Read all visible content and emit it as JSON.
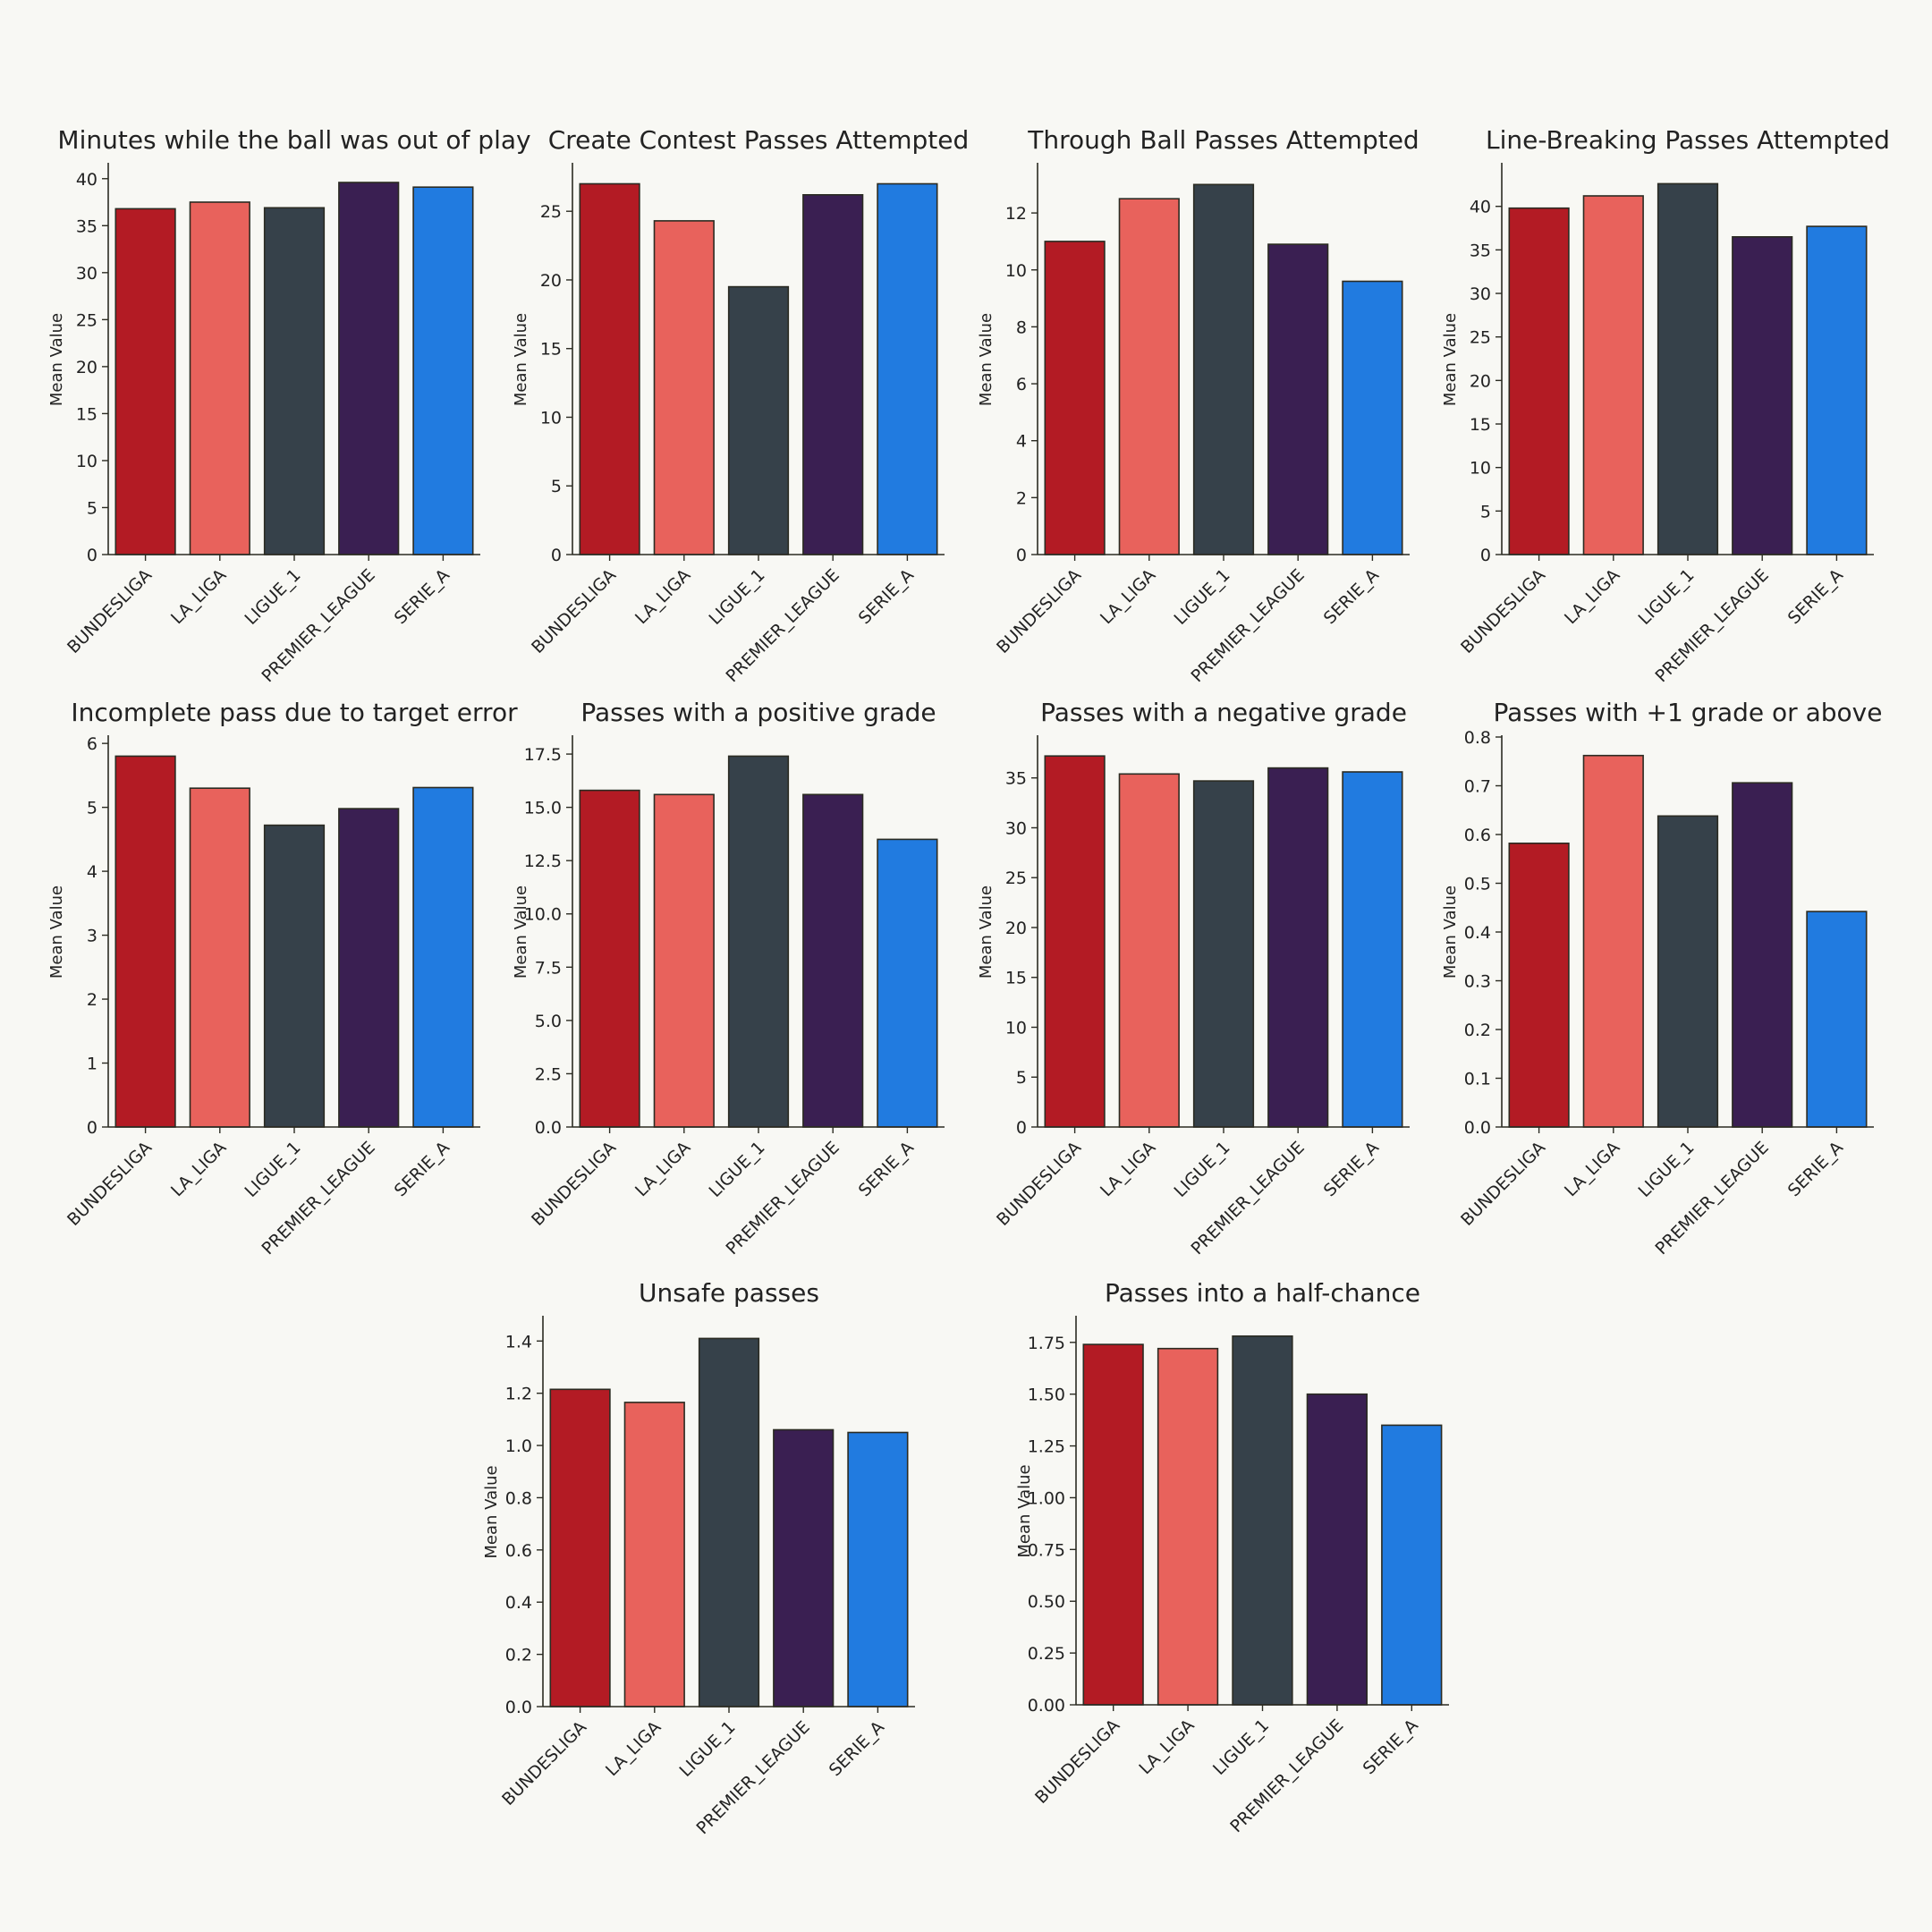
{
  "colors": [
    "#b31b24",
    "#e8625c",
    "#36414a",
    "#3a1f52",
    "#217be0"
  ],
  "chart_data": [
    {
      "type": "bar",
      "title": "Minutes while the ball was out of play",
      "xlabel": "",
      "ylabel": "Mean Value",
      "categories": [
        "BUNDESLIGA",
        "LA_LIGA",
        "LIGUE_1",
        "PREMIER_LEAGUE",
        "SERIE_A"
      ],
      "values": [
        36.8,
        37.5,
        36.9,
        39.6,
        39.1
      ],
      "ylim": [
        0,
        41.5
      ],
      "yticks": [
        0,
        5,
        10,
        15,
        20,
        25,
        30,
        35,
        40
      ],
      "ytick_labels": [
        "0",
        "5",
        "10",
        "15",
        "20",
        "25",
        "30",
        "35",
        "40"
      ]
    },
    {
      "type": "bar",
      "title": "Create Contest Passes Attempted",
      "xlabel": "",
      "ylabel": "Mean Value",
      "categories": [
        "BUNDESLIGA",
        "LA_LIGA",
        "LIGUE_1",
        "PREMIER_LEAGUE",
        "SERIE_A"
      ],
      "values": [
        27.0,
        24.3,
        19.5,
        26.2,
        27.0
      ],
      "ylim": [
        0,
        28.4
      ],
      "yticks": [
        0,
        5,
        10,
        15,
        20,
        25
      ],
      "ytick_labels": [
        "0",
        "5",
        "10",
        "15",
        "20",
        "25"
      ]
    },
    {
      "type": "bar",
      "title": "Through Ball Passes Attempted",
      "xlabel": "",
      "ylabel": "Mean Value",
      "categories": [
        "BUNDESLIGA",
        "LA_LIGA",
        "LIGUE_1",
        "PREMIER_LEAGUE",
        "SERIE_A"
      ],
      "values": [
        11.0,
        12.5,
        13.0,
        10.9,
        9.6
      ],
      "ylim": [
        0,
        13.7
      ],
      "yticks": [
        0,
        2,
        4,
        6,
        8,
        10,
        12
      ],
      "ytick_labels": [
        "0",
        "2",
        "4",
        "6",
        "8",
        "10",
        "12"
      ]
    },
    {
      "type": "bar",
      "title": "Line-Breaking Passes Attempted",
      "xlabel": "",
      "ylabel": "Mean Value",
      "categories": [
        "BUNDESLIGA",
        "LA_LIGA",
        "LIGUE_1",
        "PREMIER_LEAGUE",
        "SERIE_A"
      ],
      "values": [
        39.8,
        41.2,
        42.6,
        36.5,
        37.7
      ],
      "ylim": [
        0,
        44.8
      ],
      "yticks": [
        0,
        5,
        10,
        15,
        20,
        25,
        30,
        35,
        40
      ],
      "ytick_labels": [
        "0",
        "5",
        "10",
        "15",
        "20",
        "25",
        "30",
        "35",
        "40"
      ]
    },
    {
      "type": "bar",
      "title": "Incomplete pass due to target error",
      "xlabel": "",
      "ylabel": "Mean Value",
      "categories": [
        "BUNDESLIGA",
        "LA_LIGA",
        "LIGUE_1",
        "PREMIER_LEAGUE",
        "SERIE_A"
      ],
      "values": [
        5.8,
        5.3,
        4.72,
        4.98,
        5.31
      ],
      "ylim": [
        0,
        6.1
      ],
      "yticks": [
        0,
        1,
        2,
        3,
        4,
        5,
        6
      ],
      "ytick_labels": [
        "0",
        "1",
        "2",
        "3",
        "4",
        "5",
        "6"
      ]
    },
    {
      "type": "bar",
      "title": "Passes with a positive grade",
      "xlabel": "",
      "ylabel": "Mean Value",
      "categories": [
        "BUNDESLIGA",
        "LA_LIGA",
        "LIGUE_1",
        "PREMIER_LEAGUE",
        "SERIE_A"
      ],
      "values": [
        15.8,
        15.6,
        17.4,
        15.6,
        13.5
      ],
      "ylim": [
        0,
        18.3
      ],
      "yticks": [
        0,
        2.5,
        5,
        7.5,
        10,
        12.5,
        15,
        17.5
      ],
      "ytick_labels": [
        "0.0",
        "2.5",
        "5.0",
        "7.5",
        "10.0",
        "12.5",
        "15.0",
        "17.5"
      ]
    },
    {
      "type": "bar",
      "title": "Passes with a negative grade",
      "xlabel": "",
      "ylabel": "Mean Value",
      "categories": [
        "BUNDESLIGA",
        "LA_LIGA",
        "LIGUE_1",
        "PREMIER_LEAGUE",
        "SERIE_A"
      ],
      "values": [
        37.2,
        35.4,
        34.7,
        36.0,
        35.6
      ],
      "ylim": [
        0,
        39.1
      ],
      "yticks": [
        0,
        5,
        10,
        15,
        20,
        25,
        30,
        35
      ],
      "ytick_labels": [
        "0",
        "5",
        "10",
        "15",
        "20",
        "25",
        "30",
        "35"
      ]
    },
    {
      "type": "bar",
      "title": "Passes with +1 grade or above",
      "xlabel": "",
      "ylabel": "Mean Value",
      "categories": [
        "BUNDESLIGA",
        "LA_LIGA",
        "LIGUE_1",
        "PREMIER_LEAGUE",
        "SERIE_A"
      ],
      "values": [
        0.582,
        0.762,
        0.638,
        0.706,
        0.442
      ],
      "ylim": [
        0,
        0.8
      ],
      "yticks": [
        0,
        0.1,
        0.2,
        0.3,
        0.4,
        0.5,
        0.6,
        0.7,
        0.8
      ],
      "ytick_labels": [
        "0.0",
        "0.1",
        "0.2",
        "0.3",
        "0.4",
        "0.5",
        "0.6",
        "0.7",
        "0.8"
      ]
    },
    {
      "type": "bar",
      "title": "Unsafe passes",
      "xlabel": "",
      "ylabel": "Mean Value",
      "categories": [
        "BUNDESLIGA",
        "LA_LIGA",
        "LIGUE_1",
        "PREMIER_LEAGUE",
        "SERIE_A"
      ],
      "values": [
        1.215,
        1.165,
        1.41,
        1.06,
        1.05
      ],
      "ylim": [
        0,
        1.49
      ],
      "yticks": [
        0,
        0.2,
        0.4,
        0.6,
        0.8,
        1.0,
        1.2,
        1.4
      ],
      "ytick_labels": [
        "0.0",
        "0.2",
        "0.4",
        "0.6",
        "0.8",
        "1.0",
        "1.2",
        "1.4"
      ]
    },
    {
      "type": "bar",
      "title": "Passes into a half-chance",
      "xlabel": "",
      "ylabel": "Mean Value",
      "categories": [
        "BUNDESLIGA",
        "LA_LIGA",
        "LIGUE_1",
        "PREMIER_LEAGUE",
        "SERIE_A"
      ],
      "values": [
        1.74,
        1.72,
        1.78,
        1.5,
        1.35
      ],
      "ylim": [
        0,
        1.87
      ],
      "yticks": [
        0,
        0.25,
        0.5,
        0.75,
        1.0,
        1.25,
        1.5,
        1.75
      ],
      "ytick_labels": [
        "0.00",
        "0.25",
        "0.50",
        "0.75",
        "1.00",
        "1.25",
        "1.50",
        "1.75"
      ]
    }
  ]
}
